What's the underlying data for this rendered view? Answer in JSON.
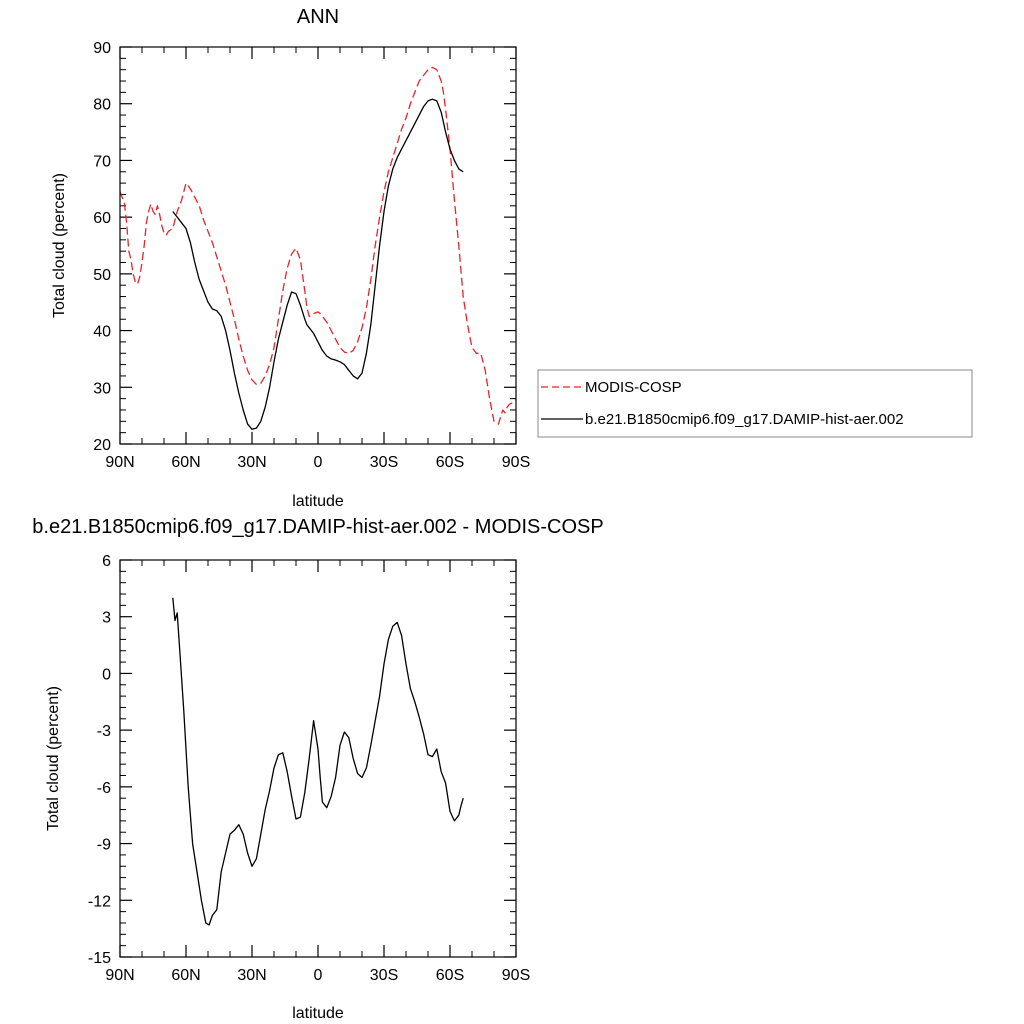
{
  "chart_data": [
    {
      "type": "line",
      "title": "ANN",
      "xlabel": "latitude",
      "ylabel": "Total cloud (percent)",
      "xlim": [
        90,
        -90
      ],
      "ylim": [
        20,
        90
      ],
      "x_ticks": [
        90,
        60,
        30,
        0,
        -30,
        -60,
        -90
      ],
      "x_tick_labels": [
        "90N",
        "60N",
        "30N",
        "0",
        "30S",
        "60S",
        "90S"
      ],
      "y_ticks": [
        20,
        30,
        40,
        50,
        60,
        70,
        80,
        90
      ],
      "y_tick_labels": [
        "20",
        "30",
        "40",
        "50",
        "60",
        "70",
        "80",
        "90"
      ],
      "grid": false,
      "legend_position": "right",
      "series": [
        {
          "name": "MODIS-COSP",
          "color": "#e8232a",
          "dash": "dashed",
          "x": [
            90,
            88,
            87,
            86,
            85,
            84,
            83,
            82,
            81,
            80,
            79,
            78,
            77,
            76,
            75,
            74,
            73,
            72,
            71,
            70,
            69,
            68,
            66,
            64,
            62,
            60,
            58,
            56,
            54,
            52,
            50,
            48,
            46,
            44,
            42,
            40,
            38,
            36,
            34,
            32,
            30,
            28,
            26,
            24,
            22,
            20,
            18,
            16,
            14,
            12,
            10,
            8,
            6,
            5,
            4,
            2,
            0,
            -1,
            -2,
            -4,
            -6,
            -8,
            -10,
            -12,
            -14,
            -16,
            -18,
            -20,
            -22,
            -24,
            -26,
            -28,
            -30,
            -32,
            -34,
            -36,
            -38,
            -40,
            -42,
            -44,
            -46,
            -48,
            -50,
            -52,
            -54,
            -56,
            -57,
            -58,
            -60,
            -62,
            -64,
            -66,
            -68,
            -70,
            -72,
            -74,
            -76,
            -78,
            -80,
            -82,
            -84,
            -85,
            -86,
            -87,
            -88,
            -89,
            -90
          ],
          "y": [
            64.5,
            62.5,
            59,
            54,
            52.5,
            50,
            48.5,
            48.2,
            49.5,
            52,
            55,
            59,
            61,
            62.3,
            61,
            60.5,
            62,
            60.5,
            58.5,
            57.2,
            56.8,
            57.5,
            58,
            61,
            63,
            66,
            65,
            63.5,
            62,
            59.5,
            57.5,
            55.5,
            53,
            50.5,
            48,
            45,
            42,
            38.5,
            35.5,
            33,
            31.3,
            30.5,
            30.7,
            32,
            34,
            37,
            42,
            47,
            51,
            53.5,
            54.5,
            52.5,
            47,
            44,
            42.5,
            43,
            43.3,
            43,
            42.5,
            41.5,
            40,
            38.5,
            37,
            36.2,
            36,
            36.5,
            38,
            40.5,
            44,
            49,
            55,
            60,
            64.5,
            68,
            70.5,
            73,
            75.5,
            77.5,
            80,
            82,
            84,
            85,
            86,
            86.4,
            86,
            84,
            82,
            79,
            72,
            63,
            55,
            46,
            41,
            37,
            36,
            36,
            33,
            28,
            24,
            23.5,
            26,
            25.5,
            26.5,
            27,
            27.2,
            27.5,
            27.8
          ]
        },
        {
          "name": "b.e21.B1850cmip6.f09_g17.DAMIP-hist-aer.002",
          "color": "#000000",
          "dash": "solid",
          "x": [
            66,
            64,
            62,
            60,
            58,
            56,
            54,
            52,
            50,
            48,
            46,
            44,
            42,
            40,
            38,
            36,
            34,
            32,
            30,
            28,
            26,
            24,
            22,
            20,
            18,
            16,
            14,
            12,
            10,
            8,
            6,
            5,
            4,
            2,
            0,
            -2,
            -4,
            -6,
            -8,
            -10,
            -12,
            -14,
            -16,
            -18,
            -20,
            -22,
            -24,
            -26,
            -28,
            -30,
            -32,
            -34,
            -36,
            -38,
            -40,
            -42,
            -44,
            -46,
            -48,
            -50,
            -52,
            -54,
            -56,
            -58,
            -60,
            -62,
            -64,
            -66
          ],
          "y": [
            61,
            60,
            59,
            58,
            55.5,
            52,
            49,
            47,
            45,
            43.8,
            43.5,
            42.5,
            40,
            36.5,
            32.5,
            29,
            26,
            23.5,
            22.6,
            22.8,
            24,
            26.5,
            30,
            34.5,
            38.5,
            41.5,
            44.5,
            46.8,
            46.5,
            44.5,
            42,
            41,
            40.5,
            39.5,
            38,
            36.5,
            35.5,
            35,
            34.8,
            34.5,
            34,
            33,
            32,
            31.5,
            32.5,
            36,
            41,
            48,
            55,
            61,
            65.5,
            68.5,
            70.5,
            72,
            73.5,
            75,
            76.5,
            78,
            79.5,
            80.5,
            80.8,
            80.5,
            78.5,
            75,
            72,
            70,
            68.5,
            68
          ]
        }
      ]
    },
    {
      "type": "line",
      "title": "b.e21.B1850cmip6.f09_g17.DAMIP-hist-aer.002 - MODIS-COSP",
      "xlabel": "latitude",
      "ylabel": "Total cloud (percent)",
      "xlim": [
        90,
        -90
      ],
      "ylim": [
        -15,
        6
      ],
      "x_ticks": [
        90,
        60,
        30,
        0,
        -30,
        -60,
        -90
      ],
      "x_tick_labels": [
        "90N",
        "60N",
        "30N",
        "0",
        "30S",
        "60S",
        "90S"
      ],
      "y_ticks": [
        -15,
        -12,
        -9,
        -6,
        -3,
        0,
        3,
        6
      ],
      "y_tick_labels": [
        "-15",
        "-12",
        "-9",
        "-6",
        "-3",
        "0",
        "3",
        "6"
      ],
      "grid": false,
      "series": [
        {
          "color": "#000000",
          "dash": "solid",
          "x": [
            66,
            65,
            64,
            63,
            61,
            59,
            57,
            55,
            53,
            51,
            49.5,
            48,
            46,
            44,
            42,
            40,
            38,
            36,
            34,
            32,
            30,
            28,
            26,
            24,
            22,
            20,
            18,
            16,
            14,
            12,
            10,
            8,
            6,
            4,
            2,
            0,
            -1,
            -2,
            -4,
            -6,
            -8,
            -10,
            -12,
            -14,
            -16,
            -18,
            -20,
            -22,
            -24,
            -26,
            -28,
            -30,
            -32,
            -34,
            -36,
            -38,
            -40,
            -42,
            -44,
            -46,
            -48,
            -50,
            -52,
            -54,
            -55,
            -56,
            -58,
            -60,
            -62,
            -64,
            -65,
            -66
          ],
          "y": [
            4,
            2.8,
            3.2,
            1.5,
            -2,
            -6,
            -9,
            -10.5,
            -12,
            -13.2,
            -13.3,
            -12.8,
            -12.5,
            -10.5,
            -9.5,
            -8.5,
            -8.3,
            -8,
            -8.5,
            -9.5,
            -10.2,
            -9.8,
            -8.5,
            -7.2,
            -6.2,
            -5,
            -4.3,
            -4.2,
            -5.2,
            -6.5,
            -7.7,
            -7.6,
            -6.3,
            -4.5,
            -2.5,
            -4,
            -5.5,
            -6.8,
            -7.1,
            -6.5,
            -5.5,
            -3.8,
            -3.1,
            -3.4,
            -4.5,
            -5.3,
            -5.5,
            -5,
            -3.8,
            -2.5,
            -1.2,
            0.5,
            1.8,
            2.5,
            2.7,
            2,
            0.5,
            -0.8,
            -1.5,
            -2.3,
            -3.2,
            -4.3,
            -4.4,
            -4,
            -4.6,
            -5.2,
            -5.8,
            -7.3,
            -7.8,
            -7.5,
            -7,
            -6.6
          ]
        }
      ]
    }
  ]
}
